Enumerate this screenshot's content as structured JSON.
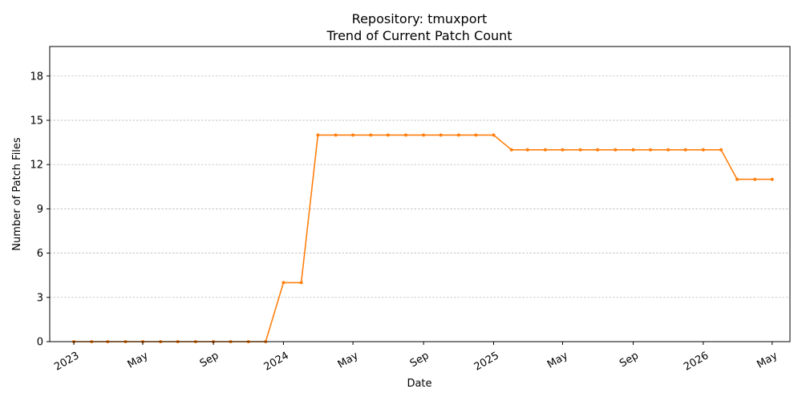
{
  "chart_data": {
    "type": "line",
    "title_line1": "Repository: tmuxport",
    "title_line2": "Trend of Current Patch Count",
    "xlabel": "Date",
    "ylabel": "Number of Patch Files",
    "ylim": [
      0,
      20
    ],
    "xlim": [
      "2022-11-20",
      "2026-06-01"
    ],
    "y_ticks": [
      0,
      3,
      6,
      9,
      12,
      15,
      18
    ],
    "x_ticks": [
      {
        "date": "2023-01-01",
        "label": "2023"
      },
      {
        "date": "2023-05-01",
        "label": "May"
      },
      {
        "date": "2023-09-01",
        "label": "Sep"
      },
      {
        "date": "2024-01-01",
        "label": "2024"
      },
      {
        "date": "2024-05-01",
        "label": "May"
      },
      {
        "date": "2024-09-01",
        "label": "Sep"
      },
      {
        "date": "2025-01-01",
        "label": "2025"
      },
      {
        "date": "2025-05-01",
        "label": "May"
      },
      {
        "date": "2025-09-01",
        "label": "Sep"
      },
      {
        "date": "2026-01-01",
        "label": "2026"
      },
      {
        "date": "2026-05-01",
        "label": "May"
      }
    ],
    "grid": "y-dashed",
    "line_color": "#ff7f0e",
    "series": [
      {
        "x": [
          "2023-01-01",
          "2023-02-01",
          "2023-03-01",
          "2023-04-01",
          "2023-05-01",
          "2023-06-01",
          "2023-07-01",
          "2023-08-01",
          "2023-09-01",
          "2023-10-01",
          "2023-11-01",
          "2023-12-01",
          "2024-01-01",
          "2024-02-01",
          "2024-03-01",
          "2024-04-01",
          "2024-05-01",
          "2024-06-01",
          "2024-07-01",
          "2024-08-01",
          "2024-09-01",
          "2024-10-01",
          "2024-11-01",
          "2024-12-01",
          "2025-01-01",
          "2025-02-01",
          "2025-03-01",
          "2025-04-01",
          "2025-05-01",
          "2025-06-01",
          "2025-07-01",
          "2025-08-01",
          "2025-09-01",
          "2025-10-01",
          "2025-11-01",
          "2025-12-01",
          "2026-01-01",
          "2026-02-01",
          "2026-03-01",
          "2026-04-01",
          "2026-05-01"
        ],
        "values": [
          0,
          0,
          0,
          0,
          0,
          0,
          0,
          0,
          0,
          0,
          0,
          0,
          4,
          4,
          14,
          14,
          14,
          14,
          14,
          14,
          14,
          14,
          14,
          14,
          14,
          13,
          13,
          13,
          13,
          13,
          13,
          13,
          13,
          13,
          13,
          13,
          13,
          13,
          11,
          11,
          11
        ]
      }
    ]
  }
}
